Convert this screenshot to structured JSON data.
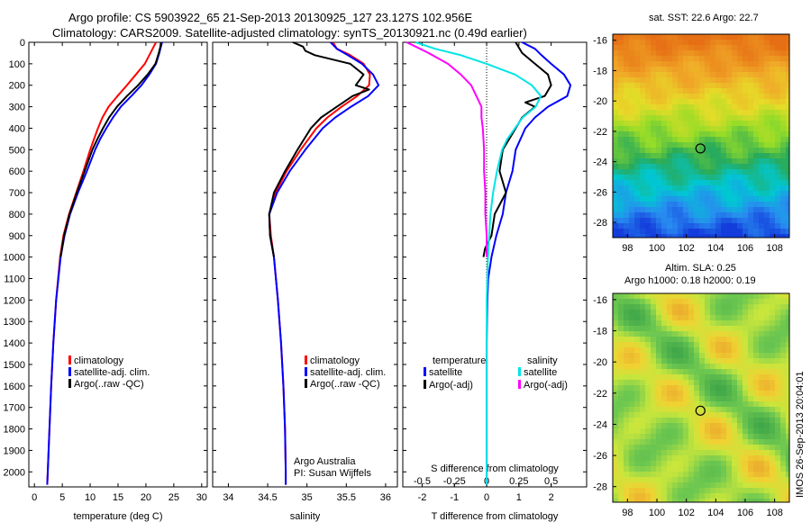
{
  "header": {
    "line1": "Argo profile: CS 5903922_65 21-Sep-2013 20130925_127 23.127S 102.956E",
    "line2": "Climatology: CARS2009. Satellite-adjusted climatology: synTS_20130921.nc (0.49d earlier)"
  },
  "colors": {
    "climatology": "#ff0000",
    "satellite": "#0000ff",
    "argo": "#000000",
    "sal_satellite": "#00e5e5",
    "sal_argo": "#ff00ff"
  },
  "legend": {
    "climatology": "climatology",
    "satellite_adj": "satellite-adj. clim.",
    "argo_raw": "Argo(..raw -QC)",
    "temperature_header": "temperature",
    "salinity_header": "salinity",
    "satellite": "satellite",
    "argo_adj": "Argo(-adj)"
  },
  "credits": {
    "line1": "Argo Australia",
    "line2": "PI: Susan Wijffels"
  },
  "sst_map": {
    "title": "sat. SST: 22.6 Argo: 22.7"
  },
  "sla_map": {
    "title1": "Altim. SLA: 0.25",
    "title2": "Argo h1000: 0.18 h2000: 0.19"
  },
  "imos_stamp": "IMOS 26-Sep-2013 20:04:01",
  "chart_data": [
    {
      "type": "line",
      "name": "temperature-profile",
      "xlabel": "temperature (deg C)",
      "ylabel": "",
      "xlim": [
        -1,
        31
      ],
      "ylim": [
        2070,
        0
      ],
      "xticks": [
        0,
        5,
        10,
        15,
        20,
        25,
        30
      ],
      "yticks": [
        0,
        100,
        200,
        300,
        400,
        500,
        600,
        700,
        800,
        900,
        1000,
        1100,
        1200,
        1300,
        1400,
        1500,
        1600,
        1700,
        1800,
        1900,
        2000
      ],
      "series": [
        {
          "name": "climatology",
          "color": "#ff0000",
          "depth": [
            0,
            20,
            50,
            100,
            150,
            200,
            250,
            300,
            350,
            400,
            450,
            500,
            600,
            700,
            800,
            900,
            1000,
            1200,
            1400,
            1600,
            1800,
            2000,
            2060
          ],
          "values": [
            21.8,
            21.4,
            20.8,
            19.8,
            18.2,
            16.6,
            14.9,
            13.3,
            12.2,
            11.4,
            10.7,
            10.0,
            8.8,
            7.5,
            6.2,
            5.2,
            4.6,
            3.9,
            3.4,
            3.0,
            2.7,
            2.4,
            2.3
          ]
        },
        {
          "name": "satellite-adj. clim.",
          "color": "#0000ff",
          "depth": [
            0,
            20,
            50,
            100,
            150,
            200,
            250,
            300,
            350,
            400,
            450,
            500,
            600,
            700,
            800,
            900,
            1000,
            1200,
            1400,
            1600,
            1800,
            2000,
            2060
          ],
          "values": [
            22.9,
            22.7,
            22.4,
            21.8,
            20.6,
            19.2,
            17.4,
            15.5,
            14.1,
            12.9,
            11.8,
            10.9,
            9.4,
            7.8,
            6.4,
            5.4,
            4.7,
            3.9,
            3.4,
            3.0,
            2.7,
            2.4,
            2.3
          ]
        },
        {
          "name": "Argo(..raw -QC)",
          "color": "#000000",
          "depth": [
            0,
            20,
            50,
            100,
            150,
            200,
            250,
            300,
            350,
            400,
            450,
            500,
            600,
            700,
            800,
            900,
            1000
          ],
          "values": [
            22.7,
            22.6,
            22.3,
            21.7,
            20.3,
            18.6,
            16.6,
            14.8,
            13.4,
            12.3,
            11.3,
            10.4,
            9.0,
            7.6,
            6.3,
            5.3,
            4.7
          ]
        }
      ]
    },
    {
      "type": "line",
      "name": "salinity-profile",
      "xlabel": "salinity",
      "ylabel": "",
      "xlim": [
        33.8,
        36.15
      ],
      "ylim": [
        2070,
        0
      ],
      "xticks": [
        34,
        34.5,
        35,
        35.5,
        36
      ],
      "series": [
        {
          "name": "climatology",
          "color": "#ff0000",
          "depth": [
            0,
            30,
            60,
            100,
            150,
            200,
            250,
            300,
            350,
            400,
            500,
            600,
            700,
            800,
            900,
            1000,
            1200,
            1400,
            1600,
            1800,
            2000,
            2060
          ],
          "values": [
            35.33,
            35.38,
            35.55,
            35.72,
            35.8,
            35.79,
            35.64,
            35.44,
            35.26,
            35.12,
            34.92,
            34.74,
            34.6,
            34.52,
            34.54,
            34.58,
            34.63,
            34.67,
            34.7,
            34.72,
            34.73,
            34.73
          ]
        },
        {
          "name": "satellite-adj. clim.",
          "color": "#0000ff",
          "depth": [
            0,
            30,
            60,
            100,
            150,
            200,
            250,
            300,
            350,
            400,
            500,
            600,
            700,
            800,
            900,
            1000,
            1200,
            1400,
            1600,
            1800,
            2000,
            2060
          ],
          "values": [
            35.3,
            35.38,
            35.52,
            35.7,
            35.84,
            35.91,
            35.78,
            35.56,
            35.36,
            35.2,
            34.98,
            34.78,
            34.62,
            34.52,
            34.53,
            34.58,
            34.63,
            34.67,
            34.7,
            34.72,
            34.73,
            34.73
          ]
        },
        {
          "name": "Argo(..raw -QC)",
          "color": "#000000",
          "depth": [
            0,
            20,
            40,
            60,
            100,
            150,
            200,
            220,
            250,
            300,
            350,
            400,
            500,
            600,
            700,
            800,
            900,
            1000
          ],
          "values": [
            34.82,
            34.95,
            34.98,
            35.1,
            35.55,
            35.72,
            35.62,
            35.79,
            35.58,
            35.38,
            35.18,
            35.05,
            34.88,
            34.72,
            34.58,
            34.52,
            34.53,
            34.58
          ]
        }
      ]
    },
    {
      "type": "line",
      "name": "difference-profile",
      "xlabel": "T difference from climatology",
      "x2label": "S difference from climatology",
      "xlim": [
        -2.6,
        3.1
      ],
      "x2lim": [
        -0.65,
        0.775
      ],
      "ylim": [
        2070,
        0
      ],
      "xticks": [
        -2,
        -1,
        0,
        1,
        2
      ],
      "x2ticks": [
        -0.5,
        -0.25,
        0,
        0.25,
        0.5
      ],
      "x2ticklabels": [
        "-0.5",
        "-0.25",
        "0",
        "0.25",
        "0.5"
      ],
      "series": [
        {
          "name": "temperature satellite",
          "color": "#0000ff",
          "depth": [
            0,
            30,
            60,
            100,
            150,
            200,
            250,
            300,
            350,
            400,
            500,
            600,
            700,
            800,
            900,
            1000,
            1100,
            1200,
            1400,
            1600,
            1800,
            2000,
            2060
          ],
          "values": [
            1.1,
            1.5,
            1.7,
            2.0,
            2.4,
            2.6,
            2.5,
            1.9,
            1.5,
            1.2,
            0.9,
            0.8,
            0.6,
            0.5,
            0.3,
            0.15,
            0.05,
            0.02,
            0,
            0,
            0,
            0,
            0
          ]
        },
        {
          "name": "temperature Argo(-adj)",
          "color": "#000000",
          "depth": [
            0,
            50,
            100,
            150,
            200,
            250,
            280,
            300,
            350,
            400,
            500,
            600,
            700,
            800,
            900,
            960,
            1000
          ],
          "values": [
            0.9,
            1.1,
            1.5,
            1.9,
            2.0,
            1.8,
            1.2,
            1.5,
            1.1,
            0.9,
            0.5,
            0.4,
            0.6,
            0.25,
            0.15,
            -0.05,
            -0.1
          ]
        },
        {
          "name": "salinity satellite",
          "color": "#00e5e5",
          "depth": [
            0,
            30,
            60,
            100,
            150,
            200,
            250,
            300,
            350,
            400,
            450,
            500,
            600,
            700,
            800,
            900,
            1000,
            1200,
            1400,
            1600,
            1800,
            2000,
            2060
          ],
          "values": [
            -0.55,
            -0.4,
            -0.2,
            0.0,
            0.22,
            0.35,
            0.42,
            0.38,
            0.28,
            0.22,
            0.16,
            0.12,
            0.08,
            0.05,
            0.03,
            0.02,
            0.01,
            0.0,
            0.0,
            0.0,
            0.0,
            0.0,
            0.0
          ]
        },
        {
          "name": "salinity Argo(-adj)",
          "color": "#ff00ff",
          "depth": [
            0,
            20,
            50,
            100,
            150,
            200,
            250,
            300,
            350,
            400,
            500,
            600,
            700,
            800,
            900,
            1000
          ],
          "values": [
            -0.62,
            -0.55,
            -0.45,
            -0.3,
            -0.2,
            -0.12,
            -0.08,
            -0.04,
            -0.04,
            -0.03,
            -0.02,
            -0.02,
            -0.01,
            -0.01,
            0.0,
            0.0
          ]
        }
      ]
    },
    {
      "type": "heatmap",
      "name": "sst-map",
      "xticks": [
        98,
        100,
        102,
        104,
        106,
        108
      ],
      "yticks": [
        -16,
        -18,
        -20,
        -22,
        -24,
        -26,
        -28
      ],
      "xlim": [
        97,
        109
      ],
      "ylim": [
        -29,
        -15.6
      ],
      "argo_position": {
        "lon": 102.956,
        "lat": -23.127
      }
    },
    {
      "type": "heatmap",
      "name": "sla-map",
      "xticks": [
        98,
        100,
        102,
        104,
        106,
        108
      ],
      "yticks": [
        -16,
        -18,
        -20,
        -22,
        -24,
        -26,
        -28
      ],
      "xlim": [
        97,
        109
      ],
      "ylim": [
        -29,
        -15.6
      ],
      "argo_position": {
        "lon": 102.956,
        "lat": -23.127
      }
    }
  ]
}
